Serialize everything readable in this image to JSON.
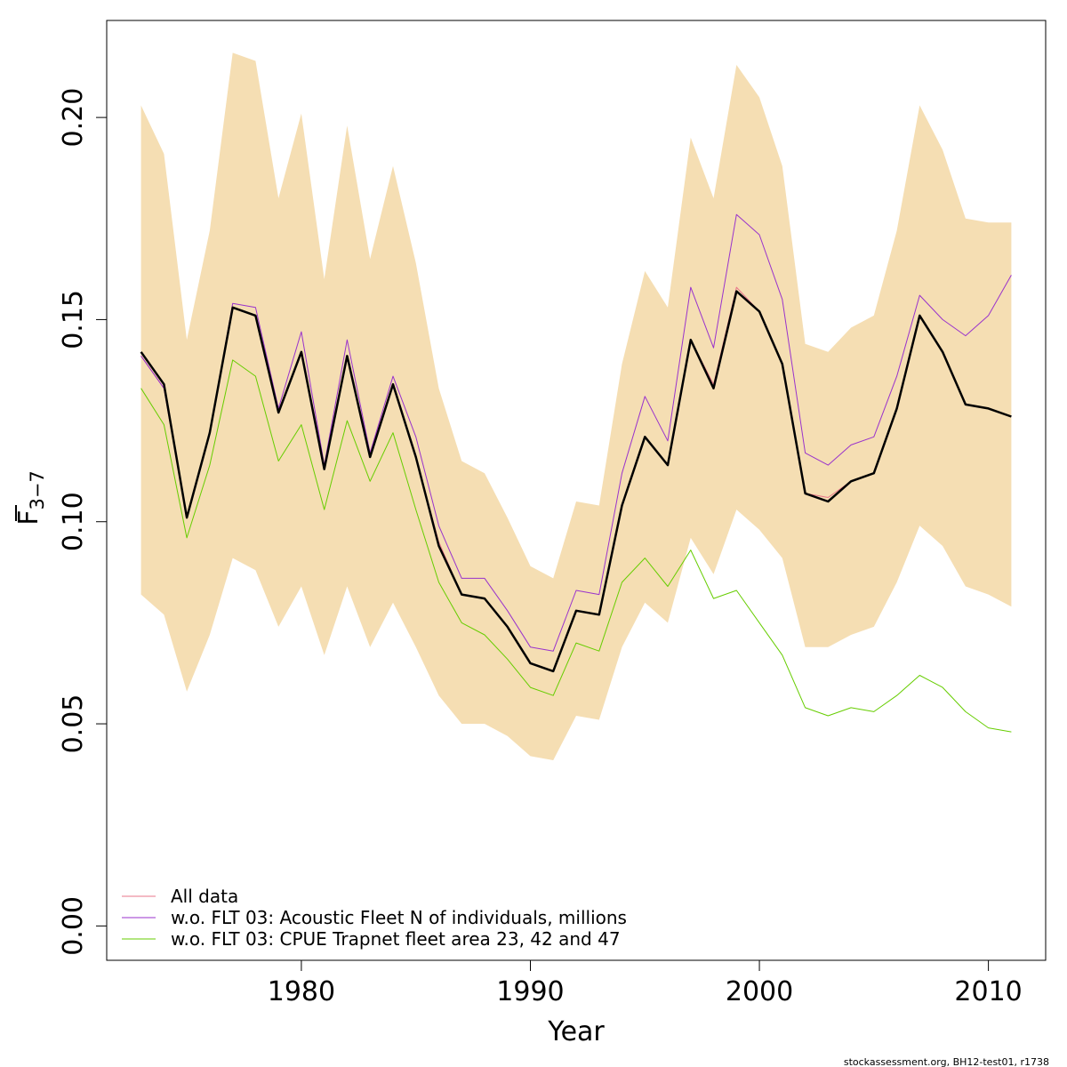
{
  "chart_data": {
    "type": "line",
    "xlabel": "Year",
    "ylabel_main": "F",
    "ylabel_sub": "3−7",
    "xlim": [
      1971.5,
      2012.5
    ],
    "ylim": [
      -0.0085,
      0.224
    ],
    "xticks": [
      1980,
      1990,
      2000,
      2010
    ],
    "yticks": [
      0.0,
      0.05,
      0.1,
      0.15,
      0.2
    ],
    "ytick_labels": [
      "0.00",
      "0.05",
      "0.10",
      "0.15",
      "0.20"
    ],
    "x": [
      1973,
      1974,
      1975,
      1976,
      1977,
      1978,
      1979,
      1980,
      1981,
      1982,
      1983,
      1984,
      1985,
      1986,
      1987,
      1988,
      1989,
      1990,
      1991,
      1992,
      1993,
      1994,
      1995,
      1996,
      1997,
      1998,
      1999,
      2000,
      2001,
      2002,
      2003,
      2004,
      2005,
      2006,
      2007,
      2008,
      2009,
      2010,
      2011
    ],
    "band": {
      "color": "#f5deb3",
      "upper": [
        0.203,
        0.191,
        0.145,
        0.172,
        0.216,
        0.214,
        0.18,
        0.201,
        0.16,
        0.198,
        0.165,
        0.188,
        0.164,
        0.133,
        0.115,
        0.112,
        0.101,
        0.089,
        0.086,
        0.105,
        0.104,
        0.139,
        0.162,
        0.153,
        0.195,
        0.18,
        0.213,
        0.205,
        0.188,
        0.144,
        0.142,
        0.148,
        0.151,
        0.172,
        0.203,
        0.192,
        0.175,
        0.174,
        0.174
      ],
      "lower": [
        0.082,
        0.077,
        0.058,
        0.072,
        0.091,
        0.088,
        0.074,
        0.084,
        0.067,
        0.084,
        0.069,
        0.08,
        0.069,
        0.057,
        0.05,
        0.05,
        0.047,
        0.042,
        0.041,
        0.052,
        0.051,
        0.069,
        0.08,
        0.075,
        0.096,
        0.087,
        0.103,
        0.098,
        0.091,
        0.069,
        0.069,
        0.072,
        0.074,
        0.085,
        0.099,
        0.094,
        0.084,
        0.082,
        0.079
      ]
    },
    "series": [
      {
        "name": "All data",
        "color": "#e8758a",
        "width": 1,
        "values": [
          0.141,
          0.133,
          0.101,
          0.122,
          0.153,
          0.151,
          0.127,
          0.142,
          0.113,
          0.141,
          0.117,
          0.134,
          0.116,
          0.095,
          0.082,
          0.081,
          0.074,
          0.065,
          0.063,
          0.078,
          0.077,
          0.104,
          0.121,
          0.114,
          0.145,
          0.134,
          0.158,
          0.152,
          0.139,
          0.107,
          0.106,
          0.11,
          0.112,
          0.128,
          0.151,
          0.142,
          0.129,
          0.128,
          0.126
        ]
      },
      {
        "name": "w.o. FLT 03: Acoustic Fleet  N of individuals, millions",
        "color": "#9932cc",
        "width": 1,
        "values": [
          0.141,
          0.133,
          0.101,
          0.122,
          0.154,
          0.153,
          0.128,
          0.147,
          0.114,
          0.145,
          0.117,
          0.136,
          0.121,
          0.099,
          0.086,
          0.086,
          0.078,
          0.069,
          0.068,
          0.083,
          0.082,
          0.112,
          0.131,
          0.12,
          0.158,
          0.143,
          0.176,
          0.171,
          0.155,
          0.117,
          0.114,
          0.119,
          0.121,
          0.136,
          0.156,
          0.15,
          0.146,
          0.151,
          0.161
        ]
      },
      {
        "name": "w.o. FLT 03: CPUE Trapnet fleet area 23, 42 and 47",
        "color": "#66cd00",
        "width": 1,
        "values": [
          0.133,
          0.124,
          0.096,
          0.114,
          0.14,
          0.136,
          0.115,
          0.124,
          0.103,
          0.125,
          0.11,
          0.122,
          0.103,
          0.085,
          0.075,
          0.072,
          0.066,
          0.059,
          0.057,
          0.07,
          0.068,
          0.085,
          0.091,
          0.084,
          0.093,
          0.081,
          0.083,
          0.075,
          0.067,
          0.054,
          0.052,
          0.054,
          0.053,
          0.057,
          0.062,
          0.059,
          0.053,
          0.049,
          0.048
        ]
      },
      {
        "name": "",
        "color": "#000000",
        "width": 2.5,
        "values": [
          0.142,
          0.134,
          0.101,
          0.122,
          0.153,
          0.151,
          0.127,
          0.142,
          0.113,
          0.141,
          0.116,
          0.134,
          0.116,
          0.094,
          0.082,
          0.081,
          0.074,
          0.065,
          0.063,
          0.078,
          0.077,
          0.104,
          0.121,
          0.114,
          0.145,
          0.133,
          0.157,
          0.152,
          0.139,
          0.107,
          0.105,
          0.11,
          0.112,
          0.128,
          0.151,
          0.142,
          0.129,
          0.128,
          0.126
        ]
      }
    ],
    "legend_position": "bottom-left",
    "grid": false
  },
  "footer_text": "stockassessment.org, BH12-test01, r1738"
}
